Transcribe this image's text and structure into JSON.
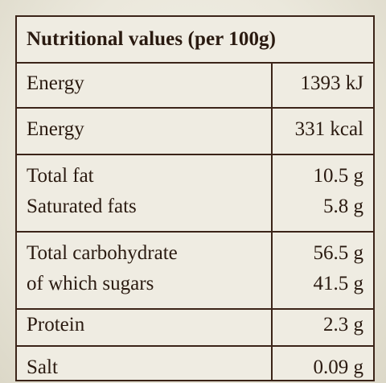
{
  "table": {
    "title": "Nutritional values (per 100g)",
    "rows": [
      {
        "lines": [
          {
            "label": "Energy",
            "value": "1393 kJ"
          }
        ]
      },
      {
        "lines": [
          {
            "label": "Energy",
            "value": "331 kcal"
          }
        ]
      },
      {
        "lines": [
          {
            "label": "Total fat",
            "value": "10.5 g"
          },
          {
            "label": "Saturated fats",
            "value": "5.8 g"
          }
        ]
      },
      {
        "lines": [
          {
            "label": "Total carbohydrate",
            "value": "56.5 g"
          },
          {
            "label": "of which sugars",
            "value": "41.5 g"
          }
        ]
      },
      {
        "lines": [
          {
            "label": "Protein",
            "value": "2.3 g"
          }
        ]
      },
      {
        "lines": [
          {
            "label": "Salt",
            "value": "0.09 g"
          }
        ]
      }
    ]
  },
  "colors": {
    "ink": "#2a1a10",
    "rule": "#3b2418",
    "paper": "#efece2"
  }
}
